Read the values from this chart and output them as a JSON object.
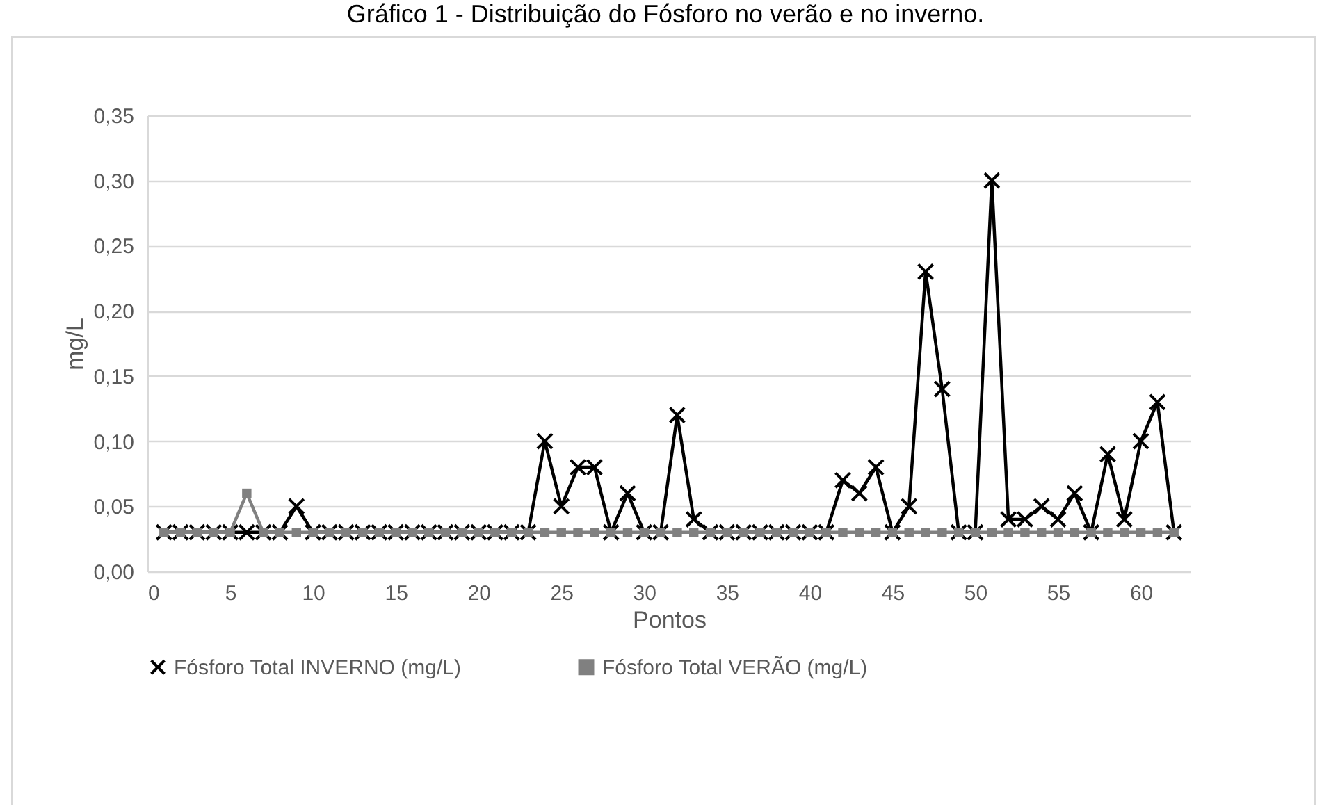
{
  "chart_data": {
    "type": "line",
    "title": "Gráfico 1 - Distribuição do Fósforo no verão e no inverno.",
    "xlabel": "Pontos",
    "ylabel": "mg/L",
    "x": [
      1,
      2,
      3,
      4,
      5,
      6,
      7,
      8,
      9,
      10,
      11,
      12,
      13,
      14,
      15,
      16,
      17,
      18,
      19,
      20,
      21,
      22,
      23,
      24,
      25,
      26,
      27,
      28,
      29,
      30,
      31,
      32,
      33,
      34,
      35,
      36,
      37,
      38,
      39,
      40,
      41,
      42,
      43,
      44,
      45,
      46,
      47,
      48,
      49,
      50,
      51,
      52,
      53,
      54,
      55,
      56,
      57,
      58,
      59,
      60,
      61,
      62
    ],
    "series": [
      {
        "name": "Fósforo Total INVERNO (mg/L)",
        "color": "#000000",
        "marker": "cross",
        "values": [
          0.03,
          0.03,
          0.03,
          0.03,
          0.03,
          0.03,
          0.03,
          0.03,
          0.05,
          0.03,
          0.03,
          0.03,
          0.03,
          0.03,
          0.03,
          0.03,
          0.03,
          0.03,
          0.03,
          0.03,
          0.03,
          0.03,
          0.03,
          0.1,
          0.05,
          0.08,
          0.08,
          0.03,
          0.06,
          0.03,
          0.03,
          0.12,
          0.04,
          0.03,
          0.03,
          0.03,
          0.03,
          0.03,
          0.03,
          0.03,
          0.03,
          0.07,
          0.06,
          0.08,
          0.03,
          0.05,
          0.23,
          0.14,
          0.03,
          0.03,
          0.3,
          0.04,
          0.04,
          0.05,
          0.04,
          0.06,
          0.03,
          0.09,
          0.04,
          0.1,
          0.13,
          0.03
        ]
      },
      {
        "name": "Fósforo Total VERÃO (mg/L)",
        "color": "#808080",
        "marker": "square",
        "values": [
          0.03,
          0.03,
          0.03,
          0.03,
          0.03,
          0.06,
          0.03,
          0.03,
          0.03,
          0.03,
          0.03,
          0.03,
          0.03,
          0.03,
          0.03,
          0.03,
          0.03,
          0.03,
          0.03,
          0.03,
          0.03,
          0.03,
          0.03,
          0.03,
          0.03,
          0.03,
          0.03,
          0.03,
          0.03,
          0.03,
          0.03,
          0.03,
          0.03,
          0.03,
          0.03,
          0.03,
          0.03,
          0.03,
          0.03,
          0.03,
          0.03,
          0.03,
          0.03,
          0.03,
          0.03,
          0.03,
          0.03,
          0.03,
          0.03,
          0.03,
          0.03,
          0.03,
          0.03,
          0.03,
          0.03,
          0.03,
          0.03,
          0.03,
          0.03,
          0.03,
          0.03,
          0.03
        ]
      }
    ],
    "xlim": [
      0,
      63
    ],
    "xticks": [
      0,
      5,
      10,
      15,
      20,
      25,
      30,
      35,
      40,
      45,
      50,
      55,
      60
    ],
    "ylim": [
      0,
      0.35
    ],
    "yticks": [
      {
        "value": 0,
        "label": "0,00"
      },
      {
        "value": 0.05,
        "label": "0,05"
      },
      {
        "value": 0.1,
        "label": "0,10"
      },
      {
        "value": 0.15,
        "label": "0,15"
      },
      {
        "value": 0.2,
        "label": "0,20"
      },
      {
        "value": 0.25,
        "label": "0,25"
      },
      {
        "value": 0.3,
        "label": "0,30"
      },
      {
        "value": 0.35,
        "label": "0,35"
      }
    ],
    "grid": "y",
    "legend": "bottom",
    "line_style": "solid"
  }
}
